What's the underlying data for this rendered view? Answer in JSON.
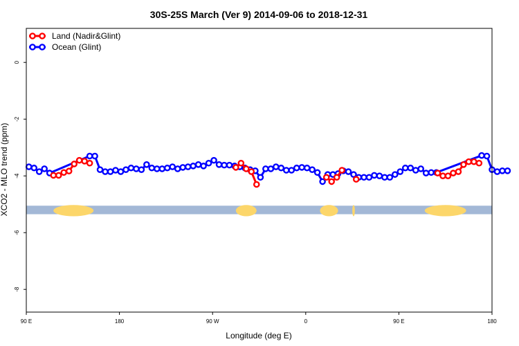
{
  "chart_data": {
    "type": "line",
    "title": "30S-25S March (Ver 9)   2014-09-06 to 2018-12-31",
    "xlabel": "Longitude (deg E)",
    "ylabel": "XCO2 - MLO trend (ppm)",
    "xlim": [
      90,
      450
    ],
    "ylim": [
      -8.8,
      1.2
    ],
    "x_ticks": [
      {
        "value": 90,
        "label": "90 E"
      },
      {
        "value": 162,
        "label": "180"
      },
      {
        "value": 234,
        "label": "90 W"
      },
      {
        "value": 306,
        "label": "0"
      },
      {
        "value": 378,
        "label": "90 E"
      },
      {
        "value": 450,
        "label": "180"
      }
    ],
    "y_ticks": [
      {
        "value": 0,
        "label": "0"
      },
      {
        "value": -2,
        "label": "-2"
      },
      {
        "value": -4,
        "label": "-4"
      },
      {
        "value": -6,
        "label": "-6"
      },
      {
        "value": -8,
        "label": "-8"
      }
    ],
    "legend_position": "top-left",
    "series": [
      {
        "name": "Land (Nadir&Glint)",
        "color": "#ff0000",
        "segments": [
          [
            [
              111,
              -3.98
            ],
            [
              115,
              -3.98
            ],
            [
              119,
              -3.88
            ],
            [
              123,
              -3.83
            ],
            [
              127,
              -3.58
            ],
            [
              131,
              -3.45
            ],
            [
              135,
              -3.48
            ],
            [
              139,
              -3.55
            ]
          ],
          [
            [
              252,
              -3.7
            ],
            [
              256,
              -3.55
            ],
            [
              260,
              -3.75
            ],
            [
              264,
              -3.85
            ],
            [
              268,
              -4.3
            ]
          ],
          [
            [
              322,
              -4.05
            ],
            [
              326,
              -4.2
            ],
            [
              330,
              -4.05
            ],
            [
              334,
              -3.8
            ]
          ],
          [
            [
              345,
              -4.12
            ]
          ],
          [
            [
              408,
              -3.9
            ],
            [
              412,
              -4.0
            ],
            [
              416,
              -4.0
            ],
            [
              420,
              -3.9
            ],
            [
              424,
              -3.85
            ],
            [
              428,
              -3.6
            ],
            [
              432,
              -3.5
            ],
            [
              436,
              -3.5
            ],
            [
              440,
              -3.55
            ]
          ]
        ]
      },
      {
        "name": "Ocean (Glint)",
        "color": "#0000ff",
        "segments": [
          [
            [
              92,
              -3.68
            ],
            [
              96,
              -3.72
            ],
            [
              100,
              -3.85
            ],
            [
              104,
              -3.75
            ],
            [
              108,
              -3.9
            ],
            [
              139,
              -3.3
            ],
            [
              143,
              -3.3
            ],
            [
              147,
              -3.78
            ],
            [
              151,
              -3.85
            ],
            [
              155,
              -3.85
            ],
            [
              159,
              -3.8
            ],
            [
              163,
              -3.85
            ],
            [
              167,
              -3.78
            ],
            [
              171,
              -3.72
            ],
            [
              175,
              -3.75
            ],
            [
              179,
              -3.78
            ],
            [
              183,
              -3.6
            ],
            [
              187,
              -3.72
            ],
            [
              191,
              -3.75
            ],
            [
              195,
              -3.75
            ],
            [
              199,
              -3.72
            ],
            [
              203,
              -3.68
            ],
            [
              207,
              -3.75
            ],
            [
              211,
              -3.7
            ],
            [
              215,
              -3.68
            ],
            [
              219,
              -3.65
            ],
            [
              223,
              -3.6
            ],
            [
              227,
              -3.65
            ],
            [
              231,
              -3.55
            ],
            [
              235,
              -3.45
            ],
            [
              239,
              -3.6
            ],
            [
              243,
              -3.62
            ],
            [
              247,
              -3.62
            ],
            [
              251,
              -3.65
            ],
            [
              255,
              -3.68
            ],
            [
              259,
              -3.72
            ],
            [
              263,
              -3.78
            ],
            [
              267,
              -3.82
            ],
            [
              271,
              -4.05
            ],
            [
              275,
              -3.75
            ],
            [
              279,
              -3.75
            ],
            [
              283,
              -3.68
            ],
            [
              287,
              -3.72
            ],
            [
              291,
              -3.8
            ],
            [
              295,
              -3.8
            ],
            [
              299,
              -3.72
            ],
            [
              303,
              -3.7
            ],
            [
              307,
              -3.72
            ],
            [
              311,
              -3.78
            ],
            [
              315,
              -3.88
            ],
            [
              319,
              -4.2
            ],
            [
              323,
              -3.95
            ],
            [
              327,
              -3.95
            ],
            [
              331,
              -3.92
            ],
            [
              335,
              -3.82
            ],
            [
              339,
              -3.85
            ],
            [
              343,
              -3.95
            ],
            [
              347,
              -4.05
            ],
            [
              351,
              -4.05
            ],
            [
              355,
              -4.05
            ],
            [
              359,
              -3.98
            ],
            [
              363,
              -4.0
            ],
            [
              367,
              -4.05
            ],
            [
              371,
              -4.05
            ],
            [
              375,
              -3.95
            ],
            [
              379,
              -3.85
            ],
            [
              383,
              -3.72
            ],
            [
              387,
              -3.72
            ],
            [
              391,
              -3.8
            ],
            [
              395,
              -3.75
            ],
            [
              399,
              -3.9
            ],
            [
              403,
              -3.88
            ],
            [
              407,
              -3.88
            ],
            [
              442,
              -3.28
            ],
            [
              446,
              -3.3
            ],
            [
              450,
              -3.78
            ],
            [
              454,
              -3.85
            ],
            [
              458,
              -3.82
            ],
            [
              462,
              -3.82
            ]
          ]
        ]
      }
    ],
    "land_mask": {
      "band_y": [
        -5.35,
        -5.05
      ],
      "ocean_color": "#a3b8d6",
      "land_color": "#fcd66a",
      "land_extents": [
        [
          111,
          142
        ],
        [
          252,
          268
        ],
        [
          317,
          331
        ],
        [
          342,
          344
        ],
        [
          398,
          430
        ]
      ]
    }
  }
}
